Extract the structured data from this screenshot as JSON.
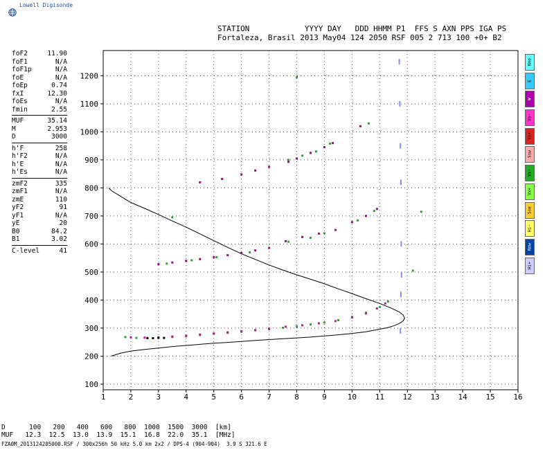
{
  "logo": {
    "text": "Lowell Digisonde",
    "icon": "globe-icon"
  },
  "header": {
    "line1": "STATION            YYYY DAY   DDD HHMM P1  FFS S AXN PPS IGA PS",
    "line2": "Fortaleza, Brasil 2013 May04 124 2050 RSF 005 2 713 100 +0+ B2"
  },
  "params": {
    "group1": [
      {
        "name": "foF2",
        "value": "11.90"
      },
      {
        "name": "foF1",
        "value": "N/A"
      },
      {
        "name": "foF1p",
        "value": "N/A"
      },
      {
        "name": "foE",
        "value": "N/A"
      },
      {
        "name": "foEp",
        "value": "0.74"
      },
      {
        "name": "fxI",
        "value": "12.30"
      },
      {
        "name": "foEs",
        "value": "N/A"
      },
      {
        "name": "fmin",
        "value": "2.55"
      }
    ],
    "group2": [
      {
        "name": "MUF",
        "value": "35.14"
      },
      {
        "name": "M",
        "value": "2.953"
      },
      {
        "name": "D",
        "value": "3000"
      }
    ],
    "group3": [
      {
        "name": "h'F",
        "value": "258"
      },
      {
        "name": "h'F2",
        "value": "N/A"
      },
      {
        "name": "h'E",
        "value": "N/A"
      },
      {
        "name": "h'Es",
        "value": "N/A"
      }
    ],
    "group4": [
      {
        "name": "zmF2",
        "value": "335"
      },
      {
        "name": "zmF1",
        "value": "N/A"
      },
      {
        "name": "zmE",
        "value": "110"
      },
      {
        "name": "yF2",
        "value": "91"
      },
      {
        "name": "yF1",
        "value": "N/A"
      },
      {
        "name": "yE",
        "value": "20"
      },
      {
        "name": "B0",
        "value": "84.2"
      },
      {
        "name": "B1",
        "value": "3.02"
      }
    ],
    "group5": [
      {
        "name": "C-level",
        "value": "41"
      }
    ]
  },
  "legend": [
    {
      "label": "Nno",
      "color": "#66ffff"
    },
    {
      "label": "E",
      "color": "#33ccff"
    },
    {
      "label": "W",
      "color": "#aa00aa"
    },
    {
      "label": "Vo-",
      "color": "#ff33cc"
    },
    {
      "label": "Vo+",
      "color": "#dd2222"
    },
    {
      "label": "Ssw",
      "color": "#ffaaaa"
    },
    {
      "label": "Vx-",
      "color": "#22aa22"
    },
    {
      "label": "Vx+",
      "color": "#88ff44"
    },
    {
      "label": "Sse",
      "color": "#ffcc33"
    },
    {
      "label": "Hi-",
      "color": "#ffff66"
    },
    {
      "label": "Nnw",
      "color": "#0044aa"
    },
    {
      "label": "Hi+",
      "color": "#ccccff"
    }
  ],
  "muf_table": {
    "d_label": "D",
    "d_values": [
      "100",
      "200",
      "400",
      "600",
      "800",
      "1000",
      "1500",
      "3000"
    ],
    "d_unit": "[km]",
    "muf_label": "MUF",
    "muf_values": [
      "12.3",
      "12.5",
      "13.0",
      "13.9",
      "15.1",
      "16.8",
      "22.0",
      "35.1"
    ],
    "muf_unit": "[MHz]"
  },
  "footer": "FZA0M_2013124205000.RSF / 300x256h 50 kHz 5.0 km 2x2 / DPS-4 (904-904)  3.9 S 321.6 E",
  "chart_data": {
    "type": "scatter",
    "xlim": [
      1,
      16
    ],
    "ylim": [
      80,
      1290
    ],
    "xticks": [
      1,
      2,
      3,
      4,
      5,
      6,
      7,
      8,
      9,
      10,
      11,
      12,
      13,
      14,
      15,
      16
    ],
    "yticks": [
      100,
      200,
      300,
      400,
      500,
      600,
      700,
      800,
      900,
      1000,
      1100,
      1200
    ],
    "grid": true,
    "profile": {
      "name": "electron density profile",
      "x": [
        1.3,
        1.6,
        2.0,
        2.5,
        3.0,
        3.5,
        4.0,
        4.5,
        5.0,
        5.5,
        6.0,
        6.5,
        7.0,
        7.5,
        8.0,
        8.5,
        9.0,
        9.5,
        10.0,
        10.5,
        11.0,
        11.3,
        11.5,
        11.7,
        11.85,
        11.9,
        11.85,
        11.7,
        11.4,
        11.0,
        10.5,
        10.0,
        9.5,
        9.0,
        8.5,
        8.0,
        7.5,
        7.0,
        6.5,
        6.0,
        5.5,
        5.0,
        4.5,
        4.0,
        3.5,
        3.0,
        2.5,
        2.0,
        1.6,
        1.3,
        1.2
      ],
      "y": [
        200,
        210,
        218,
        224,
        229,
        234,
        238,
        242,
        246,
        249,
        252,
        256,
        259,
        262,
        265,
        268,
        272,
        276,
        281,
        287,
        296,
        302,
        308,
        316,
        326,
        335,
        346,
        358,
        372,
        388,
        405,
        423,
        440,
        458,
        474,
        490,
        507,
        525,
        545,
        565,
        588,
        612,
        636,
        660,
        682,
        705,
        727,
        748,
        772,
        790,
        800
      ]
    },
    "traces": [
      {
        "name": "F2 O-trace",
        "color": "#22aa22",
        "x": [
          1.8,
          2.2,
          2.6,
          3.0,
          3.5,
          4.0,
          4.5,
          5.0,
          5.5,
          6.0,
          6.5,
          7.0,
          7.5,
          8.0,
          8.5,
          9.0,
          9.5,
          10.0,
          10.5,
          11.0,
          11.3
        ],
        "y": [
          268,
          265,
          265,
          266,
          268,
          271,
          275,
          280,
          283,
          287,
          292,
          296,
          301,
          306,
          313,
          320,
          328,
          340,
          355,
          375,
          395
        ]
      },
      {
        "name": "F2 O-trace magenta",
        "color": "#cc1199",
        "x": [
          2.0,
          2.5,
          3.0,
          3.5,
          4.0,
          4.5,
          5.0,
          5.5,
          6.0,
          6.5,
          7.0,
          7.6,
          8.2,
          8.8,
          9.4,
          10.0,
          10.5,
          10.9,
          11.2
        ],
        "y": [
          267,
          266,
          267,
          270,
          273,
          277,
          281,
          285,
          289,
          293,
          298,
          305,
          310,
          317,
          325,
          338,
          352,
          370,
          388
        ]
      },
      {
        "name": "black trace",
        "color": "#000000",
        "x": [
          2.6,
          2.8,
          3.0,
          3.2
        ],
        "y": [
          264,
          264,
          265,
          265
        ]
      },
      {
        "name": "second hop",
        "color": "#aa0088",
        "x": [
          3.0,
          3.5,
          4.0,
          4.5,
          5.0,
          5.5,
          6.0,
          6.5,
          7.0,
          7.6,
          8.2,
          8.8,
          9.4,
          10.0,
          10.5,
          10.9
        ],
        "y": [
          528,
          534,
          540,
          546,
          553,
          560,
          568,
          577,
          586,
          610,
          625,
          637,
          650,
          678,
          700,
          725
        ]
      },
      {
        "name": "second hop green",
        "color": "#22aa22",
        "x": [
          3.3,
          4.2,
          5.1,
          6.3,
          7.7,
          8.5,
          9.0,
          10.2,
          10.8
        ],
        "y": [
          530,
          542,
          553,
          570,
          608,
          622,
          638,
          684,
          718
        ]
      },
      {
        "name": "third hop",
        "color": "#aa0088",
        "x": [
          4.5,
          5.3,
          6.0,
          6.5,
          7.0,
          7.7,
          8.0,
          8.5,
          9.0,
          9.3,
          10.3
        ],
        "y": [
          820,
          832,
          848,
          862,
          875,
          893,
          905,
          925,
          945,
          960,
          1020
        ]
      },
      {
        "name": "third hop green",
        "color": "#22aa22",
        "x": [
          7.7,
          8.2,
          8.7,
          9.2,
          10.6
        ],
        "y": [
          900,
          915,
          930,
          958,
          1030
        ]
      },
      {
        "name": "X-trace dashes",
        "color": "#8888ff",
        "x": [
          11.72,
          11.74,
          11.76,
          11.78,
          11.79,
          11.8,
          11.78,
          11.76
        ],
        "y": [
          1250,
          1100,
          950,
          820,
          600,
          490,
          420,
          290
        ]
      },
      {
        "name": "sparse",
        "color": "#22aa22",
        "x": [
          12.2,
          12.5,
          3.5,
          8.0
        ],
        "y": [
          505,
          715,
          695,
          1195
        ]
      }
    ]
  }
}
